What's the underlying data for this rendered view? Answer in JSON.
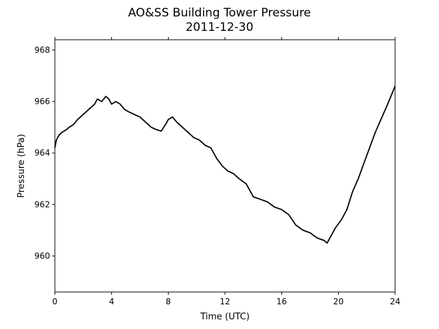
{
  "chart_data": {
    "type": "line",
    "title": "AO&SS Building Tower Pressure",
    "subtitle": "2011-12-30",
    "xlabel": "Time (UTC)",
    "ylabel": "Pressure (hPa)",
    "xlim": [
      0,
      24
    ],
    "ylim": [
      958.6,
      968.4
    ],
    "xticks": [
      0,
      4,
      8,
      12,
      16,
      20,
      24
    ],
    "yticks": [
      960,
      962,
      964,
      966,
      968
    ],
    "grid": false,
    "series": [
      {
        "color": "#000000",
        "x": [
          0,
          0.1,
          0.3,
          0.5,
          0.8,
          1.0,
          1.3,
          1.6,
          2.0,
          2.4,
          2.8,
          3.0,
          3.3,
          3.6,
          3.8,
          4.0,
          4.3,
          4.6,
          4.9,
          5.2,
          5.6,
          6.0,
          6.4,
          6.8,
          7.2,
          7.5,
          7.8,
          8.0,
          8.3,
          8.6,
          9.0,
          9.4,
          9.8,
          10.2,
          10.6,
          11.0,
          11.4,
          11.8,
          12.2,
          12.6,
          13.0,
          13.5,
          14.0,
          14.5,
          15.0,
          15.5,
          16.0,
          16.5,
          17.0,
          17.5,
          18.0,
          18.5,
          19.0,
          19.2,
          19.5,
          19.8,
          20.2,
          20.6,
          21.0,
          21.4,
          21.8,
          22.2,
          22.6,
          23.0,
          23.4,
          23.7,
          24.0
        ],
        "y": [
          964.2,
          964.5,
          964.7,
          964.8,
          964.9,
          965.0,
          965.1,
          965.3,
          965.5,
          965.7,
          965.9,
          966.1,
          966.0,
          966.2,
          966.1,
          965.9,
          966.0,
          965.9,
          965.7,
          965.6,
          965.5,
          965.4,
          965.2,
          965.0,
          964.9,
          964.85,
          965.1,
          965.3,
          965.4,
          965.2,
          965.0,
          964.8,
          964.6,
          964.5,
          964.3,
          964.2,
          963.8,
          963.5,
          963.3,
          963.2,
          963.0,
          962.8,
          962.3,
          962.2,
          962.1,
          961.9,
          961.8,
          961.6,
          961.2,
          961.0,
          960.9,
          960.7,
          960.6,
          960.5,
          960.8,
          961.1,
          961.4,
          961.8,
          962.5,
          963.0,
          963.6,
          964.2,
          964.8,
          965.3,
          965.8,
          966.2,
          966.6
        ]
      }
    ]
  }
}
